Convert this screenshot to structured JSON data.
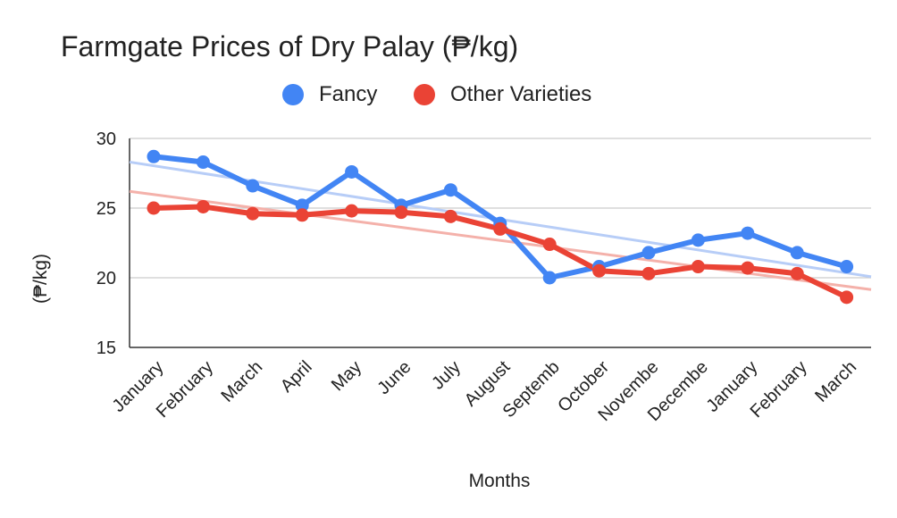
{
  "chart_data": {
    "type": "line",
    "title": "Farmgate Prices of Dry Palay (₱/kg)",
    "xlabel": "Months",
    "ylabel": "(₱/kg)",
    "categories": [
      "January",
      "February",
      "March",
      "April",
      "May",
      "June",
      "July",
      "August",
      "Septemb",
      "October",
      "Novembe",
      "Decembe",
      "January",
      "February",
      "March"
    ],
    "ylim": [
      15,
      30
    ],
    "yticks": [
      15,
      20,
      25,
      30
    ],
    "grid": true,
    "legend_position": "top",
    "series": [
      {
        "name": "Fancy",
        "color": "#4285f4",
        "trendline_color": "#b7cdf7",
        "values": [
          28.7,
          28.3,
          26.6,
          25.2,
          27.6,
          25.2,
          26.3,
          23.9,
          20.0,
          20.8,
          21.8,
          22.7,
          23.2,
          21.8,
          20.8
        ]
      },
      {
        "name": "Other Varieties",
        "color": "#ea4335",
        "trendline_color": "#f4b1aa",
        "values": [
          25.0,
          25.1,
          24.6,
          24.5,
          24.8,
          24.7,
          24.4,
          23.5,
          22.4,
          20.5,
          20.3,
          20.8,
          20.7,
          20.3,
          18.6
        ]
      }
    ]
  }
}
